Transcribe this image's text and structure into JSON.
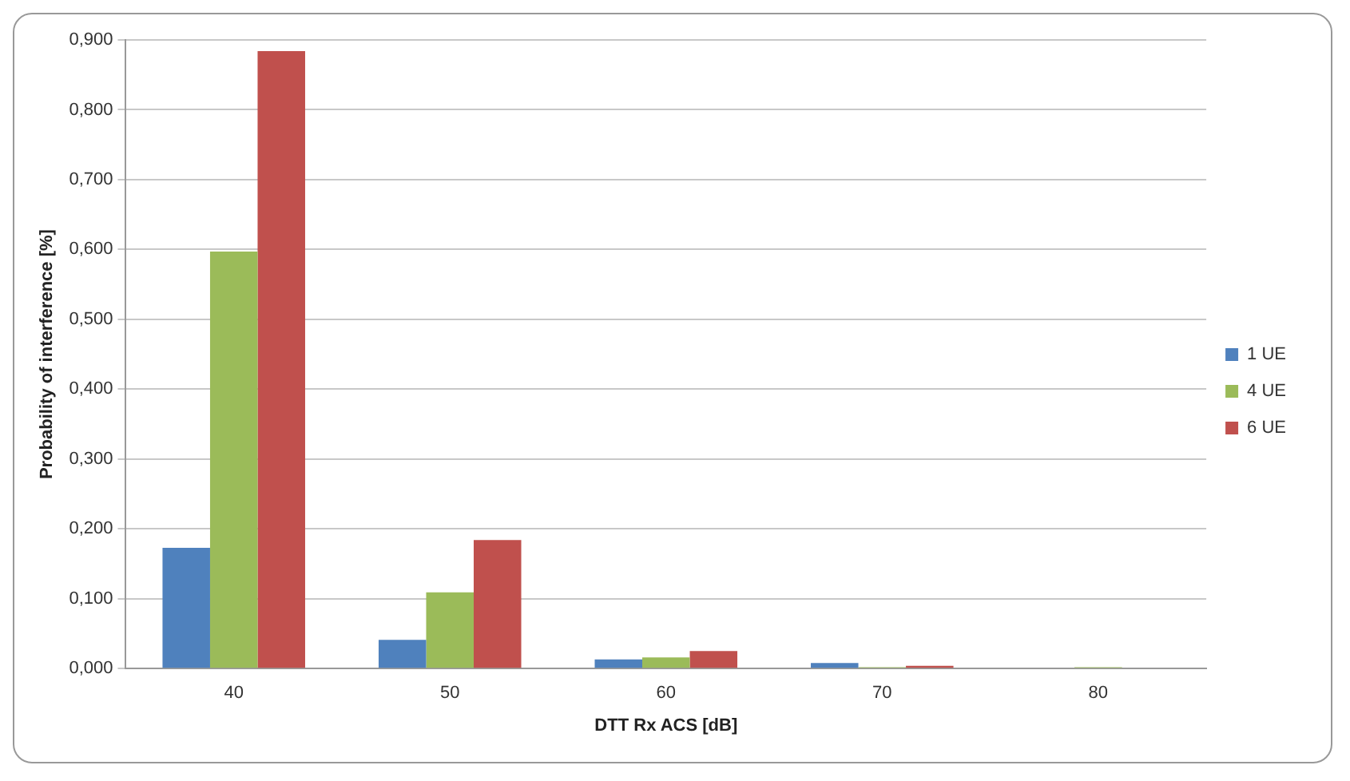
{
  "chart_data": {
    "type": "bar",
    "xlabel": "DTT Rx ACS [dB]",
    "ylabel": "Probability of interference [%]",
    "categories": [
      "40",
      "50",
      "60",
      "70",
      "80"
    ],
    "series": [
      {
        "name": "1 UE",
        "color": "#4f81bd",
        "values": [
          0.173,
          0.041,
          0.013,
          0.008,
          0
        ]
      },
      {
        "name": "4 UE",
        "color": "#9bbb59",
        "values": [
          0.597,
          0.109,
          0.016,
          0.002,
          0.002
        ]
      },
      {
        "name": "6 UE",
        "color": "#c0504d",
        "values": [
          0.884,
          0.184,
          0.025,
          0.004,
          0
        ]
      }
    ],
    "ylim": [
      0,
      0.9
    ],
    "yticks": [
      {
        "value": 0,
        "label": "0,000"
      },
      {
        "value": 0.1,
        "label": "0,100"
      },
      {
        "value": 0.2,
        "label": "0,200"
      },
      {
        "value": 0.3,
        "label": "0,300"
      },
      {
        "value": 0.4,
        "label": "0,400"
      },
      {
        "value": 0.5,
        "label": "0,500"
      },
      {
        "value": 0.6,
        "label": "0,600"
      },
      {
        "value": 0.7,
        "label": "0,700"
      },
      {
        "value": 0.8,
        "label": "0,800"
      },
      {
        "value": 0.9,
        "label": "0,900"
      }
    ],
    "grid": "y",
    "legend": "right"
  }
}
